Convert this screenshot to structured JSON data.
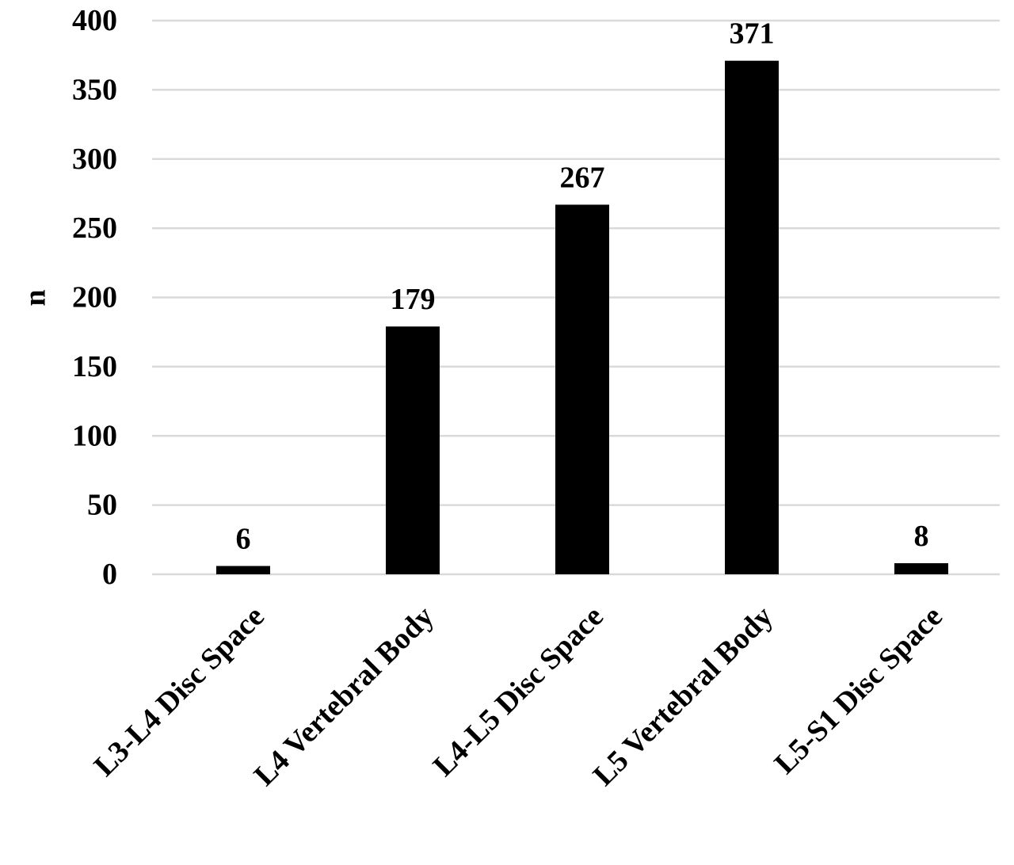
{
  "chart_data": {
    "type": "bar",
    "title": "",
    "xlabel": "",
    "ylabel": "n",
    "ylim": [
      0,
      400
    ],
    "yticks": [
      0,
      50,
      100,
      150,
      200,
      250,
      300,
      350,
      400
    ],
    "grid": true,
    "legend": "none",
    "categories": [
      "L3-L4 Disc Space",
      "L4 Vertebral Body",
      "L4-L5 Disc Space",
      "L5 Vertebral Body",
      "L5-S1 Disc Space"
    ],
    "values": [
      6,
      179,
      267,
      371,
      8
    ],
    "data_labels": [
      "6",
      "179",
      "267",
      "371",
      "8"
    ],
    "colors": {
      "bar": "#000000",
      "grid": "#d9d9d9",
      "text": "#000000"
    }
  }
}
